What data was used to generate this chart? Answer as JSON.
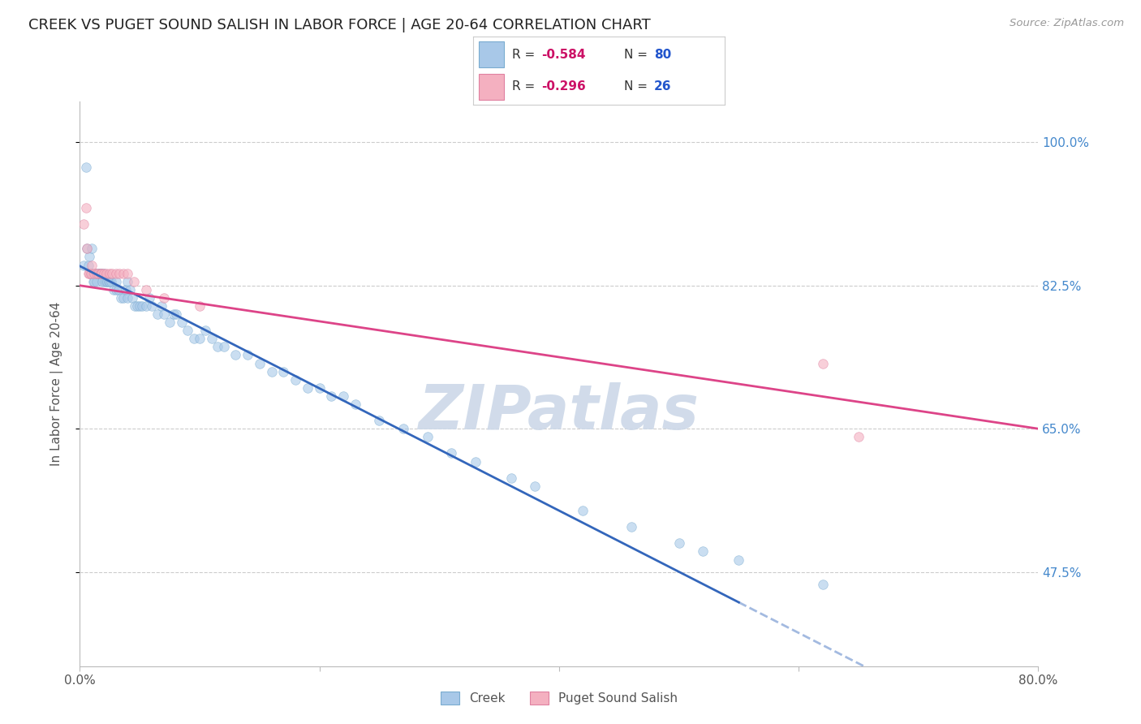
{
  "title": "CREEK VS PUGET SOUND SALISH IN LABOR FORCE | AGE 20-64 CORRELATION CHART",
  "source": "Source: ZipAtlas.com",
  "ylabel": "In Labor Force | Age 20-64",
  "x_tick_labels": [
    "0.0%",
    "",
    "",
    "",
    "80.0%"
  ],
  "x_tick_values": [
    0.0,
    0.2,
    0.4,
    0.6,
    0.8
  ],
  "y_tick_labels": [
    "100.0%",
    "82.5%",
    "65.0%",
    "47.5%"
  ],
  "y_tick_values": [
    1.0,
    0.825,
    0.65,
    0.475
  ],
  "xlim": [
    0.0,
    0.8
  ],
  "ylim": [
    0.36,
    1.05
  ],
  "creek_R": "-0.584",
  "creek_N": "80",
  "puget_R": "-0.296",
  "puget_N": "26",
  "creek_color": "#a8c8e8",
  "creek_edge_color": "#7aacd0",
  "puget_color": "#f4b0c0",
  "puget_edge_color": "#e080a0",
  "creek_line_color": "#3366bb",
  "puget_line_color": "#dd4488",
  "grid_color": "#cccccc",
  "background_color": "#ffffff",
  "watermark_color": "#ccd8e8",
  "legend_R_color": "#cc1166",
  "legend_N_color": "#2255cc",
  "title_fontsize": 13,
  "axis_label_fontsize": 11,
  "tick_fontsize": 11,
  "marker_size": 70,
  "marker_alpha": 0.6,
  "line_width": 2.0,
  "creek_x": [
    0.003,
    0.005,
    0.006,
    0.007,
    0.008,
    0.009,
    0.01,
    0.01,
    0.011,
    0.012,
    0.013,
    0.014,
    0.015,
    0.016,
    0.017,
    0.018,
    0.019,
    0.02,
    0.021,
    0.022,
    0.023,
    0.024,
    0.025,
    0.026,
    0.028,
    0.03,
    0.03,
    0.032,
    0.034,
    0.036,
    0.038,
    0.04,
    0.04,
    0.042,
    0.044,
    0.046,
    0.048,
    0.05,
    0.052,
    0.055,
    0.058,
    0.06,
    0.065,
    0.068,
    0.07,
    0.075,
    0.078,
    0.08,
    0.085,
    0.09,
    0.095,
    0.1,
    0.105,
    0.11,
    0.115,
    0.12,
    0.13,
    0.14,
    0.15,
    0.16,
    0.17,
    0.18,
    0.19,
    0.2,
    0.21,
    0.22,
    0.23,
    0.25,
    0.27,
    0.29,
    0.31,
    0.33,
    0.36,
    0.38,
    0.42,
    0.46,
    0.5,
    0.52,
    0.55,
    0.62
  ],
  "creek_y": [
    0.85,
    0.97,
    0.87,
    0.85,
    0.86,
    0.84,
    0.87,
    0.84,
    0.83,
    0.83,
    0.84,
    0.83,
    0.84,
    0.84,
    0.84,
    0.84,
    0.83,
    0.84,
    0.83,
    0.83,
    0.83,
    0.83,
    0.83,
    0.83,
    0.82,
    0.82,
    0.83,
    0.82,
    0.81,
    0.81,
    0.82,
    0.83,
    0.81,
    0.82,
    0.81,
    0.8,
    0.8,
    0.8,
    0.8,
    0.8,
    0.81,
    0.8,
    0.79,
    0.8,
    0.79,
    0.78,
    0.79,
    0.79,
    0.78,
    0.77,
    0.76,
    0.76,
    0.77,
    0.76,
    0.75,
    0.75,
    0.74,
    0.74,
    0.73,
    0.72,
    0.72,
    0.71,
    0.7,
    0.7,
    0.69,
    0.69,
    0.68,
    0.66,
    0.65,
    0.64,
    0.62,
    0.61,
    0.59,
    0.58,
    0.55,
    0.53,
    0.51,
    0.5,
    0.49,
    0.46
  ],
  "puget_x": [
    0.003,
    0.005,
    0.006,
    0.007,
    0.008,
    0.009,
    0.01,
    0.012,
    0.014,
    0.015,
    0.017,
    0.018,
    0.02,
    0.022,
    0.025,
    0.027,
    0.03,
    0.033,
    0.036,
    0.04,
    0.045,
    0.055,
    0.07,
    0.1,
    0.62,
    0.65
  ],
  "puget_y": [
    0.9,
    0.92,
    0.87,
    0.84,
    0.84,
    0.84,
    0.85,
    0.84,
    0.84,
    0.84,
    0.84,
    0.84,
    0.84,
    0.84,
    0.84,
    0.84,
    0.84,
    0.84,
    0.84,
    0.84,
    0.83,
    0.82,
    0.81,
    0.8,
    0.73,
    0.64
  ]
}
